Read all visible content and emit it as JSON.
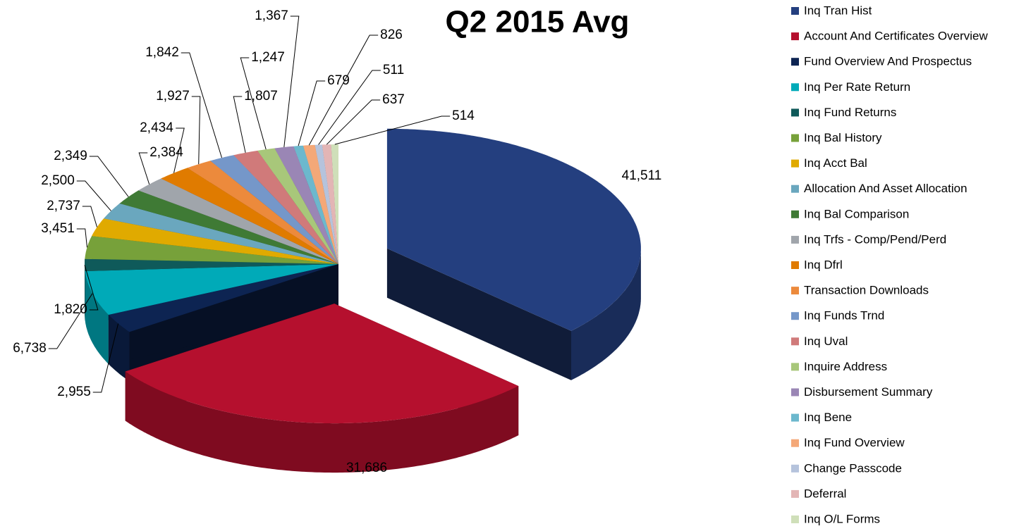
{
  "chart_data": {
    "type": "pie3d",
    "title": "Q2 2015 Avg",
    "categories": [
      "Inq Tran Hist",
      "Account And Certificates Overview",
      "Fund Overview And Prospectus",
      "Inq Per Rate Return",
      "Inq Fund Returns",
      "Inq Bal History",
      "Inq Acct Bal",
      "Allocation And Asset Allocation",
      "Inq Bal Comparison",
      "Inq Trfs - Comp/Pend/Perd",
      "Inq Dfrl",
      "Transaction Downloads",
      "Inq Funds Trnd",
      "Inq Uval",
      "Inquire Address",
      "Disbursement Summary",
      "Inq Bene",
      "Inq Fund Overview",
      "Change Passcode",
      "Deferral",
      "Inq O/L Forms"
    ],
    "values": [
      41511,
      31686,
      2955,
      6738,
      1820,
      3451,
      2737,
      2500,
      2349,
      2384,
      2434,
      1927,
      1842,
      1807,
      1247,
      1367,
      679,
      826,
      511,
      637,
      514
    ],
    "value_labels": [
      "41,511",
      "31,686",
      "2,955",
      "6,738",
      "1,820",
      "3,451",
      "2,737",
      "2,500",
      "2,349",
      "2,384",
      "2,434",
      "1,927",
      "1,842",
      "1,807",
      "1,247",
      "1,367",
      "679",
      "826",
      "511",
      "637",
      "514"
    ],
    "colors": [
      "#243f7f",
      "#b5102e",
      "#0d2452",
      "#00aab8",
      "#0f5a5a",
      "#77a13a",
      "#e0aa00",
      "#6aa7be",
      "#3f7a35",
      "#a0a5ab",
      "#e07b00",
      "#ec8a3c",
      "#7597c9",
      "#d07a7a",
      "#a8c77a",
      "#9a86b5",
      "#6cb8cd",
      "#f4a878",
      "#b5c3dc",
      "#e3b5b5",
      "#cfdfb9"
    ],
    "exploded": [
      0,
      1
    ],
    "legend": "right"
  }
}
